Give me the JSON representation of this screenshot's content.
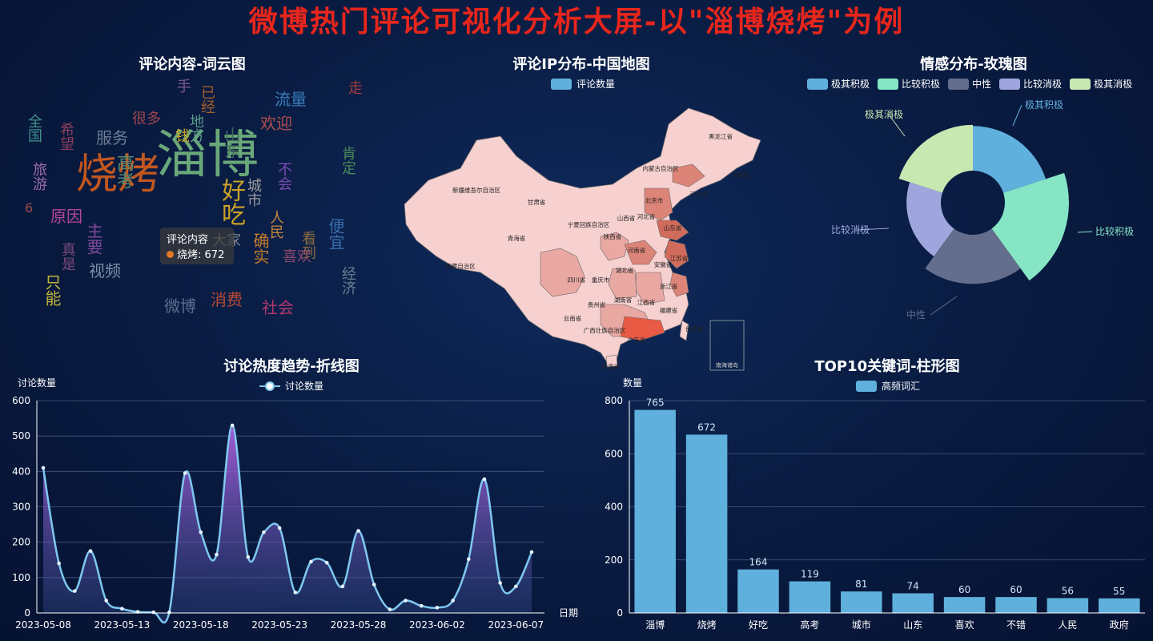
{
  "title": "微博热门评论可视化分析大屏-以\"淄博烧烤\"为例",
  "wordcloud": {
    "title": "评论内容-词云图",
    "tooltip": {
      "series": "评论内容",
      "item": "烧烤",
      "value": "672"
    },
    "words": [
      {
        "t": "烧烤",
        "c": "#c2571f"
      },
      {
        "t": "淄博",
        "c": "#6aa879"
      },
      {
        "t": "好吃",
        "c": "#c9a227"
      },
      {
        "t": "服务",
        "c": "#6b7c93"
      },
      {
        "t": "很多",
        "c": "#a0464e"
      },
      {
        "t": "高考",
        "c": "#5c8a6e"
      },
      {
        "t": "原因",
        "c": "#b4479e"
      },
      {
        "t": "视频",
        "c": "#7c8ea6"
      },
      {
        "t": "只能",
        "c": "#c1b33a"
      },
      {
        "t": "旅游",
        "c": "#9d6bb0"
      },
      {
        "t": "希望",
        "c": "#8c3c5a"
      },
      {
        "t": "全国",
        "c": "#3f8f8a"
      },
      {
        "t": "流量",
        "c": "#3a7fbf"
      },
      {
        "t": "欢迎",
        "c": "#b24d4d"
      },
      {
        "t": "不会",
        "c": "#7a4bb2"
      },
      {
        "t": "消费",
        "c": "#b74a3a"
      },
      {
        "t": "社会",
        "c": "#b1386c"
      },
      {
        "t": "微博",
        "c": "#5c6c8c"
      },
      {
        "t": "经济",
        "c": "#6b7e90"
      },
      {
        "t": "人民",
        "c": "#c7873c"
      },
      {
        "t": "看到",
        "c": "#8c6c3c"
      },
      {
        "t": "主要",
        "c": "#7e4a9a"
      },
      {
        "t": "便宜",
        "c": "#3b6fb0"
      },
      {
        "t": "地方",
        "c": "#5a9a8a"
      },
      {
        "t": "已经",
        "c": "#a45f2b"
      },
      {
        "t": "山东",
        "c": "#3f6b5a"
      },
      {
        "t": "城市",
        "c": "#9e9e9e"
      },
      {
        "t": "确实",
        "c": "#c27a2a"
      },
      {
        "t": "大家",
        "c": "#888888"
      },
      {
        "t": "真是",
        "c": "#7a4a7a"
      },
      {
        "t": "肯定",
        "c": "#4a8a5a"
      },
      {
        "t": "喜欢",
        "c": "#8a4a6a"
      },
      {
        "t": "走",
        "c": "#a03a3a"
      },
      {
        "t": "手",
        "c": "#7a5a8a"
      },
      {
        "t": "钱",
        "c": "#c9a227"
      },
      {
        "t": "6",
        "c": "#9a4a4a"
      }
    ]
  },
  "map": {
    "title": "评论IP分布-中国地图",
    "legend": "评论数量",
    "inset_label": "南海诸岛",
    "provinces": [
      {
        "n": "新疆维吾尔自治区",
        "level": 0
      },
      {
        "n": "西藏自治区",
        "level": 0
      },
      {
        "n": "青海省",
        "level": 0
      },
      {
        "n": "甘肃省",
        "level": 0
      },
      {
        "n": "内蒙古自治区",
        "level": 0
      },
      {
        "n": "黑龙江省",
        "level": 0
      },
      {
        "n": "吉林省",
        "level": 0
      },
      {
        "n": "辽宁省",
        "level": 2
      },
      {
        "n": "北京市",
        "level": 2
      },
      {
        "n": "河北省",
        "level": 2
      },
      {
        "n": "山西省",
        "level": 0
      },
      {
        "n": "宁夏回族自治区",
        "level": 0
      },
      {
        "n": "陕西省",
        "level": 1
      },
      {
        "n": "河南省",
        "level": 2
      },
      {
        "n": "山东省",
        "level": 3
      },
      {
        "n": "江苏省",
        "level": 3
      },
      {
        "n": "安徽省",
        "level": 1
      },
      {
        "n": "湖北省",
        "level": 1
      },
      {
        "n": "四川省",
        "level": 1
      },
      {
        "n": "重庆市",
        "level": 1
      },
      {
        "n": "贵州省",
        "level": 1
      },
      {
        "n": "云南省",
        "level": 0
      },
      {
        "n": "湖南省",
        "level": 1
      },
      {
        "n": "江西省",
        "level": 1
      },
      {
        "n": "浙江省",
        "level": 2
      },
      {
        "n": "福建省",
        "level": 1
      },
      {
        "n": "广东省",
        "level": 4
      },
      {
        "n": "广西壮族自治区",
        "level": 1
      },
      {
        "n": "海南省",
        "level": 0
      },
      {
        "n": "台湾省",
        "level": 0
      }
    ]
  },
  "rose": {
    "title": "情感分布-玫瑰图",
    "colors": {
      "极其积极": "#5fb0dc",
      "比较积极": "#86e5c5",
      "中性": "#646d8c",
      "比较消极": "#9fa6de",
      "极其消极": "#c8e8b2"
    }
  },
  "line": {
    "title": "讨论热度趋势-折线图",
    "legend": "讨论数量",
    "ylabel": "讨论数量",
    "xlabel": "日期",
    "xticks": [
      "2023-05-08",
      "2023-05-13",
      "2023-05-18",
      "2023-05-23",
      "2023-05-28",
      "2023-06-02",
      "2023-06-07"
    ]
  },
  "bar": {
    "title": "TOP10关键词-柱形图",
    "legend": "高频词汇",
    "ylabel": "数量"
  },
  "chart_data": [
    {
      "type": "pie",
      "title": "情感分布-玫瑰图",
      "legend_position": "top",
      "categories": [
        "极其积极",
        "比较积极",
        "中性",
        "比较消极",
        "极其消极"
      ],
      "values": [
        78,
        112,
        86,
        60,
        80
      ]
    },
    {
      "type": "line",
      "title": "讨论热度趋势-折线图",
      "ylabel": "讨论数量",
      "xlabel": "日期",
      "ylim": [
        0,
        600
      ],
      "yticks": [
        0,
        100,
        200,
        300,
        400,
        500,
        600
      ],
      "x": [
        "2023-05-08",
        "2023-05-09",
        "2023-05-10",
        "2023-05-11",
        "2023-05-12",
        "2023-05-13",
        "2023-05-14",
        "2023-05-15",
        "2023-05-16",
        "2023-05-17",
        "2023-05-18",
        "2023-05-19",
        "2023-05-20",
        "2023-05-21",
        "2023-05-22",
        "2023-05-23",
        "2023-05-24",
        "2023-05-25",
        "2023-05-26",
        "2023-05-27",
        "2023-05-28",
        "2023-05-29",
        "2023-05-30",
        "2023-05-31",
        "2023-06-01",
        "2023-06-02",
        "2023-06-03",
        "2023-06-04",
        "2023-06-05",
        "2023-06-06",
        "2023-06-07",
        "2023-06-08"
      ],
      "series": [
        {
          "name": "讨论数量",
          "values": [
            410,
            140,
            62,
            175,
            35,
            12,
            3,
            2,
            2,
            395,
            228,
            165,
            530,
            158,
            228,
            240,
            58,
            145,
            142,
            75,
            232,
            80,
            10,
            35,
            20,
            15,
            35,
            152,
            378,
            85,
            75,
            172
          ]
        }
      ]
    },
    {
      "type": "bar",
      "title": "TOP10关键词-柱形图",
      "ylabel": "数量",
      "ylim": [
        0,
        800
      ],
      "yticks": [
        0,
        200,
        400,
        600,
        800
      ],
      "categories": [
        "淄博",
        "烧烤",
        "好吃",
        "高考",
        "城市",
        "山东",
        "喜欢",
        "不错",
        "人民",
        "政府"
      ],
      "series": [
        {
          "name": "高频词汇",
          "values": [
            765,
            672,
            164,
            119,
            81,
            74,
            60,
            60,
            56,
            55
          ]
        }
      ]
    }
  ]
}
